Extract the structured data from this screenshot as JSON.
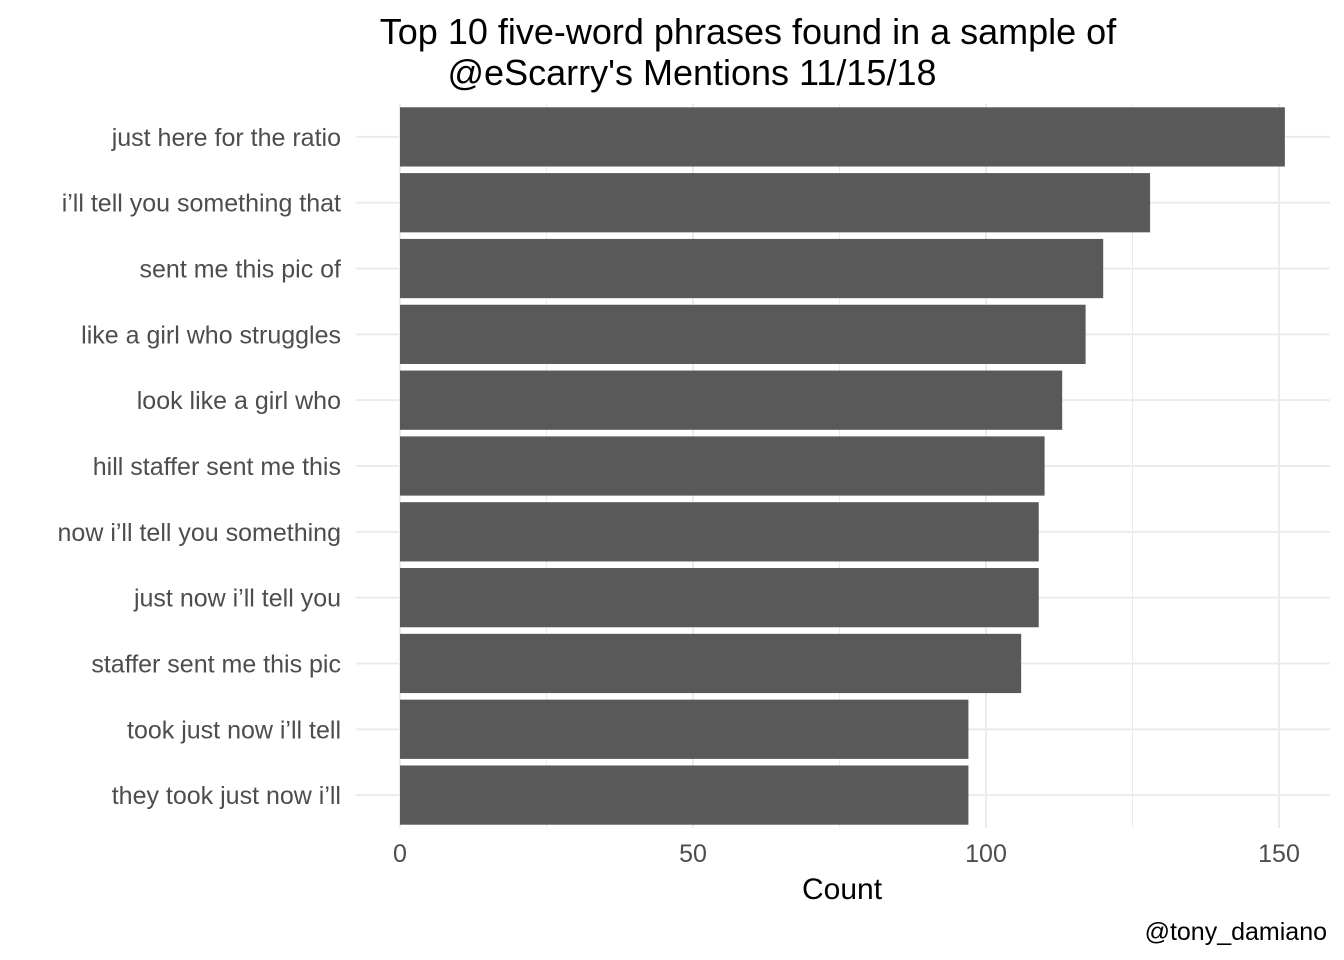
{
  "chart_data": {
    "type": "bar",
    "orientation": "horizontal",
    "title": [
      "Top 10 five-word phrases found in a sample of",
      "@eScarry's Mentions 11/15/18"
    ],
    "xlabel": "Count",
    "ylabel": "",
    "caption": "@tony_damiano",
    "categories": [
      "just here for the ratio",
      "i’ll tell you something that",
      "sent me this pic of",
      "like a girl who struggles",
      "look like a girl who",
      "hill staffer sent me this",
      "now i’ll tell you something",
      "just now i’ll tell you",
      "staffer sent me this pic",
      "took just now i’ll tell",
      "they took just now i’ll"
    ],
    "values": [
      151,
      128,
      120,
      117,
      113,
      110,
      109,
      109,
      106,
      97,
      97
    ],
    "xlim": [
      0,
      157
    ],
    "x_ticks": [
      0,
      50,
      100,
      150
    ],
    "x_tick_labels": [
      "0",
      "50",
      "100",
      "150"
    ],
    "grid": true,
    "legend": "none",
    "bar_color": "#595959",
    "grid_color": "#ebebeb"
  }
}
